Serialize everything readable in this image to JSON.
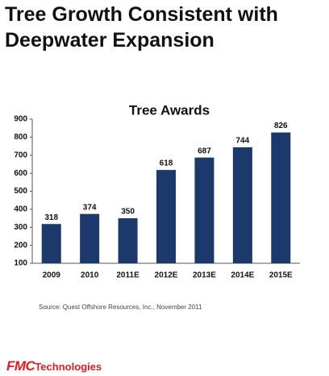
{
  "header": {
    "title": "Tree Growth Consistent with Deepwater Expansion"
  },
  "chart_data": {
    "type": "bar",
    "title": "Tree Awards",
    "categories": [
      "2009",
      "2010",
      "2011E",
      "2012E",
      "2013E",
      "2014E",
      "2015E"
    ],
    "values": [
      318,
      374,
      350,
      618,
      687,
      744,
      826
    ],
    "color": "#1b3a6b",
    "ylim": [
      100,
      900
    ],
    "yticks": [
      100,
      200,
      300,
      400,
      500,
      600,
      700,
      800,
      900
    ],
    "grid": false
  },
  "source": "Source:  Quest Offshore Resources, Inc., November 2011",
  "logo": {
    "mark": "FMC",
    "text": "Technologies"
  }
}
